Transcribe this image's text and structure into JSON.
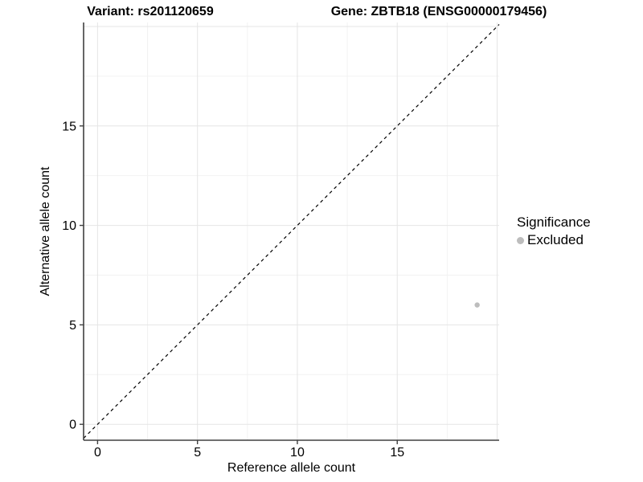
{
  "titles": {
    "variant": "Variant: rs201120659",
    "gene": "Gene: ZBTB18 (ENSG00000179456)"
  },
  "chart_data": {
    "type": "scatter",
    "xlabel": "Reference allele count",
    "ylabel": "Alternative allele count",
    "xlim": [
      -0.7,
      20.1
    ],
    "ylim": [
      -0.8,
      20.2
    ],
    "x_ticks": [
      0,
      5,
      10,
      15
    ],
    "y_ticks": [
      0,
      5,
      10,
      15
    ],
    "x_minor_ticks": [
      2.5,
      7.5,
      12.5,
      17.5
    ],
    "y_minor_ticks": [
      2.5,
      7.5,
      12.5,
      17.5
    ],
    "grid": "major+minor",
    "identity_line": {
      "style": "dashed",
      "color": "#000000"
    },
    "series": [
      {
        "name": "Excluded",
        "color": "#bdbdbd",
        "points": [
          {
            "x": 19,
            "y": 6
          }
        ]
      }
    ],
    "legend": {
      "title": "Significance",
      "position": "right",
      "items": [
        {
          "label": "Excluded",
          "color": "#bdbdbd"
        }
      ]
    }
  },
  "colors": {
    "background": "#ffffff",
    "axis_line": "#404040",
    "grid_major": "#e5e5e5",
    "grid_minor": "#f2f2f2",
    "tick_text": "#000000",
    "point": "#bdbdbd"
  }
}
